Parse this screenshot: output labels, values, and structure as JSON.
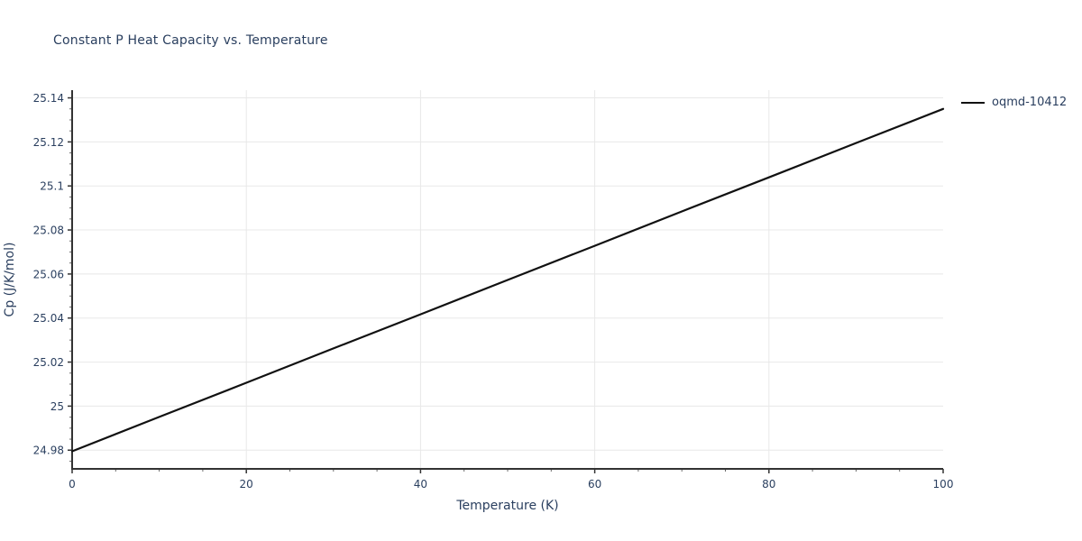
{
  "colors": {
    "text": "#2a3f5f",
    "grid": "#e8e8e8",
    "axis": "#333333",
    "minor_tick": "#666666",
    "background": "#ffffff"
  },
  "chart_data": {
    "type": "line",
    "title": "Constant P Heat Capacity vs. Temperature",
    "xlabel": "Temperature (K)",
    "ylabel": "Cp (J/K/mol)",
    "xlim": [
      0,
      100
    ],
    "ylim": [
      24.9715,
      25.1435
    ],
    "x_ticks": [
      0,
      20,
      40,
      60,
      80,
      100
    ],
    "x_tick_labels": [
      "0",
      "20",
      "40",
      "60",
      "80",
      "100"
    ],
    "x_gridlines": [
      20,
      40,
      60,
      80
    ],
    "x_minor_step": 5,
    "y_ticks": [
      24.98,
      25.0,
      25.02,
      25.04,
      25.06,
      25.08,
      25.1,
      25.12,
      25.14
    ],
    "y_tick_labels": [
      "24.98",
      "25",
      "25.02",
      "25.04",
      "25.06",
      "25.08",
      "25.1",
      "25.12",
      "25.14"
    ],
    "y_minor_step": 0.005,
    "grid": true,
    "legend_position": "top-right-outside",
    "series": [
      {
        "name": "oqmd-10412",
        "color": "#111111",
        "x": [
          0,
          10,
          20,
          30,
          40,
          50,
          60,
          70,
          80,
          90,
          100
        ],
        "y": [
          24.9795,
          24.9951,
          25.0106,
          25.0262,
          25.0417,
          25.0573,
          25.0728,
          25.0884,
          25.1039,
          25.1195,
          25.135
        ]
      }
    ]
  }
}
